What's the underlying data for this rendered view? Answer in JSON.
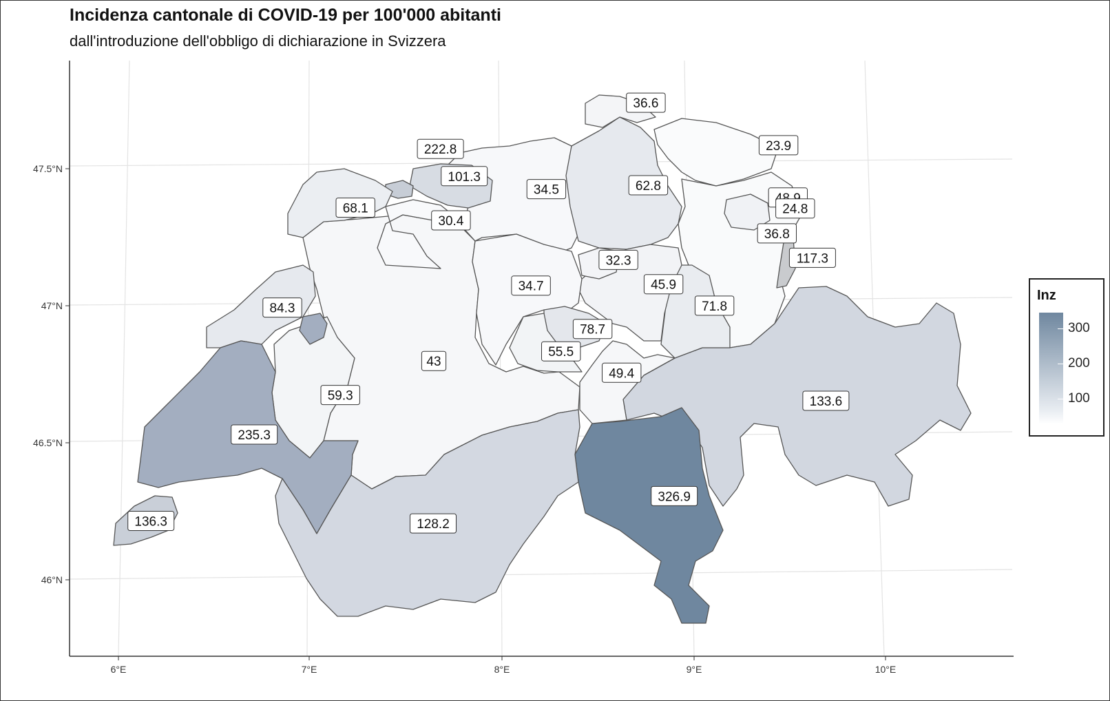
{
  "title": "Incidenza cantonale di COVID-19 per 100'000 abitanti",
  "subtitle": "dall'introduzione dell'obbligo di dichiarazione in Svizzera",
  "axes": {
    "x_ticks": [
      "6°E",
      "7°E",
      "8°E",
      "9°E",
      "10°E"
    ],
    "y_ticks": [
      "47.5°N",
      "47°N",
      "46.5°N",
      "46°N"
    ]
  },
  "legend": {
    "title": "Inz",
    "ticks": [
      "300",
      "200",
      "100"
    ]
  },
  "colors": {
    "low": "#ffffff",
    "high": "#6f879f",
    "outline": "#555555"
  },
  "labels": [
    {
      "text": "36.6",
      "lon": 8.65,
      "lat": 47.72
    },
    {
      "text": "222.8",
      "lon": 7.59,
      "lat": 47.56
    },
    {
      "text": "101.3",
      "lon": 7.72,
      "lat": 47.46
    },
    {
      "text": "23.9",
      "lon": 9.35,
      "lat": 47.56
    },
    {
      "text": "34.5",
      "lon": 8.15,
      "lat": 47.41
    },
    {
      "text": "62.8",
      "lon": 8.68,
      "lat": 47.42
    },
    {
      "text": "68.1",
      "lon": 7.16,
      "lat": 47.35
    },
    {
      "text": "48.9",
      "lon": 9.41,
      "lat": 47.37
    },
    {
      "text": "24.8",
      "lon": 9.45,
      "lat": 47.33
    },
    {
      "text": "30.4",
      "lon": 7.66,
      "lat": 47.3
    },
    {
      "text": "36.8",
      "lon": 9.36,
      "lat": 47.24
    },
    {
      "text": "32.3",
      "lon": 8.54,
      "lat": 47.15
    },
    {
      "text": "117.3",
      "lon": 9.55,
      "lat": 47.15
    },
    {
      "text": "34.7",
      "lon": 8.09,
      "lat": 47.06
    },
    {
      "text": "45.9",
      "lon": 8.78,
      "lat": 47.06
    },
    {
      "text": "84.3",
      "lon": 6.8,
      "lat": 46.99
    },
    {
      "text": "71.8",
      "lon": 9.05,
      "lat": 46.98
    },
    {
      "text": "78.7",
      "lon": 8.42,
      "lat": 46.9
    },
    {
      "text": "55.5",
      "lon": 8.26,
      "lat": 46.82
    },
    {
      "text": "43",
      "lon": 7.6,
      "lat": 46.79
    },
    {
      "text": "49.4",
      "lon": 8.58,
      "lat": 46.74
    },
    {
      "text": "59.3",
      "lon": 7.12,
      "lat": 46.67
    },
    {
      "text": "133.6",
      "lon": 9.65,
      "lat": 46.63
    },
    {
      "text": "235.3",
      "lon": 6.68,
      "lat": 46.53
    },
    {
      "text": "326.9",
      "lon": 8.88,
      "lat": 46.29
    },
    {
      "text": "128.2",
      "lon": 7.63,
      "lat": 46.2
    },
    {
      "text": "136.3",
      "lon": 6.16,
      "lat": 46.22
    }
  ]
}
